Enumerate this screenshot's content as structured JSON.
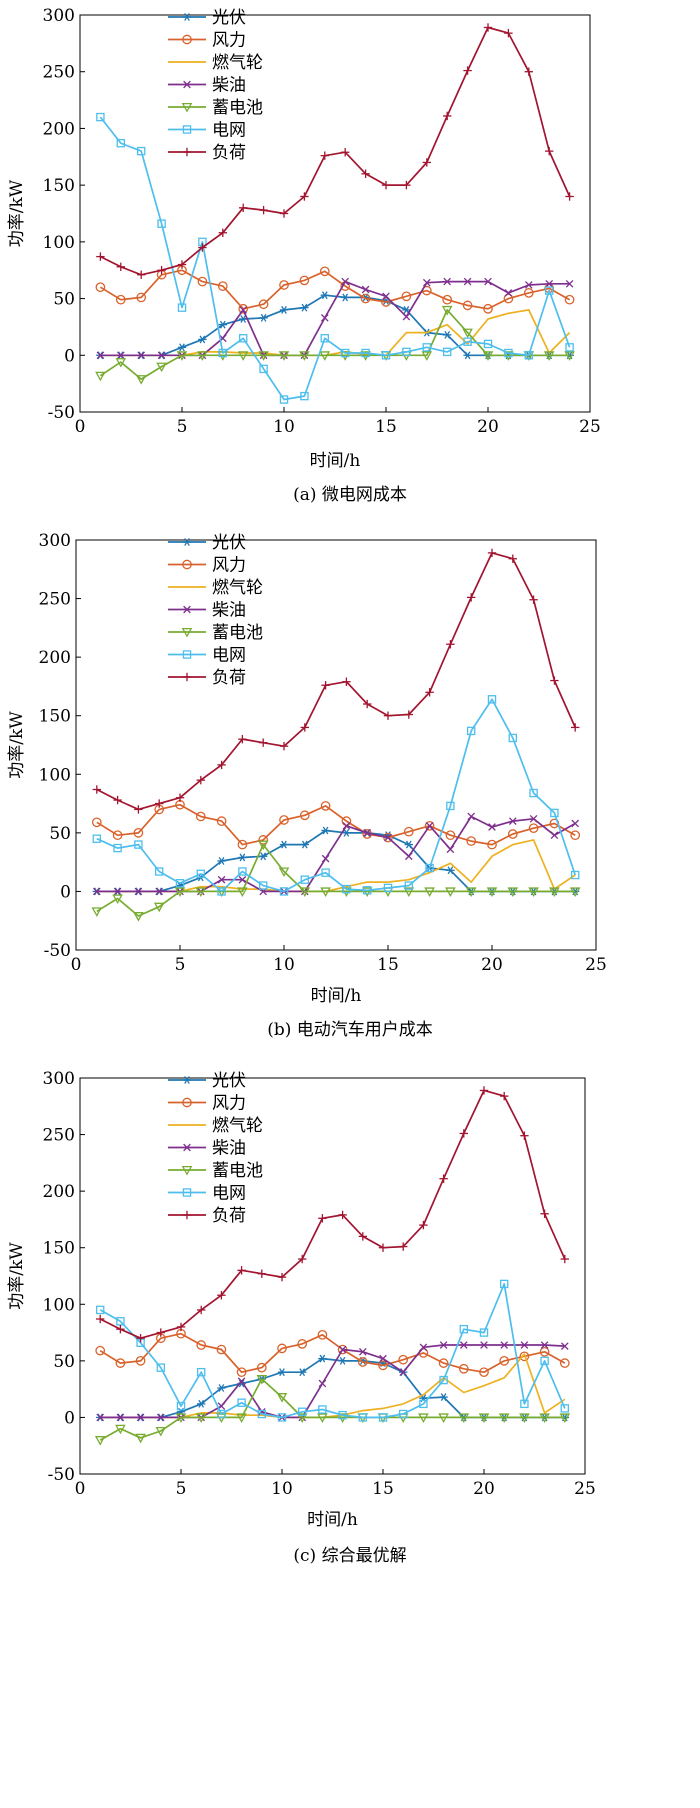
{
  "charts": [
    {
      "caption": "(a) 微电网成本",
      "chart_data": {
        "type": "line",
        "xlabel": "时间/h",
        "ylabel": "功率/kW",
        "xlim": [
          0,
          25
        ],
        "ylim": [
          -50,
          300
        ],
        "xticks": [
          0,
          5,
          10,
          15,
          20,
          25
        ],
        "yticks": [
          -50,
          0,
          50,
          100,
          150,
          200,
          250,
          300
        ],
        "grid": false,
        "legend_position": "top-left",
        "x": [
          1,
          2,
          3,
          4,
          5,
          6,
          7,
          8,
          9,
          10,
          11,
          12,
          13,
          14,
          15,
          16,
          17,
          18,
          19,
          20,
          21,
          22,
          23,
          24
        ],
        "series": [
          {
            "name": "光伏",
            "marker": "asterisk",
            "color": "#1f77b4",
            "values": [
              0,
              0,
              0,
              0,
              7,
              14,
              27,
              32,
              33,
              40,
              42,
              53,
              51,
              51,
              48,
              40,
              20,
              18,
              0,
              0,
              0,
              0,
              0,
              0
            ]
          },
          {
            "name": "风力",
            "marker": "circle",
            "color": "#d9622b",
            "values": [
              60,
              49,
              51,
              71,
              75,
              65,
              61,
              41,
              45,
              62,
              66,
              74,
              61,
              50,
              47,
              52,
              57,
              49,
              44,
              41,
              50,
              55,
              59,
              49
            ]
          },
          {
            "name": "燃气轮",
            "marker": "none",
            "color": "#edb120",
            "values": [
              0,
              0,
              0,
              0,
              0,
              3,
              3,
              2,
              2,
              0,
              0,
              0,
              3,
              1,
              0,
              20,
              20,
              27,
              10,
              32,
              37,
              40,
              2,
              20
            ]
          },
          {
            "name": "柴油",
            "marker": "x",
            "color": "#7e2f8e",
            "values": [
              0,
              0,
              0,
              0,
              0,
              0,
              15,
              40,
              0,
              0,
              0,
              33,
              65,
              58,
              52,
              34,
              64,
              65,
              65,
              65,
              55,
              62,
              63,
              63
            ]
          },
          {
            "name": "蓄电池",
            "marker": "triangle-down",
            "color": "#77ac30",
            "values": [
              -18,
              -6,
              -21,
              -10,
              0,
              0,
              0,
              0,
              0,
              0,
              0,
              0,
              0,
              0,
              0,
              0,
              0,
              40,
              20,
              0,
              0,
              0,
              0,
              0
            ]
          },
          {
            "name": "电网",
            "marker": "square",
            "color": "#4dbeee",
            "values": [
              210,
              187,
              180,
              116,
              42,
              100,
              2,
              15,
              -12,
              -39,
              -36,
              15,
              2,
              2,
              0,
              3,
              7,
              3,
              12,
              10,
              2,
              0,
              57,
              7
            ]
          },
          {
            "name": "负荷",
            "marker": "plus",
            "color": "#a2142f",
            "values": [
              87,
              78,
              71,
              75,
              80,
              95,
              108,
              130,
              128,
              125,
              140,
              176,
              179,
              160,
              150,
              150,
              170,
              211,
              251,
              289,
              284,
              250,
              180,
              140
            ]
          }
        ]
      }
    },
    {
      "caption": "(b) 电动汽车用户成本",
      "chart_data": {
        "type": "line",
        "xlabel": "时间/h",
        "ylabel": "功率/kW",
        "xlim": [
          0,
          25
        ],
        "ylim": [
          -50,
          300
        ],
        "xticks": [
          0,
          5,
          10,
          15,
          20,
          25
        ],
        "yticks": [
          -50,
          0,
          50,
          100,
          150,
          200,
          250,
          300
        ],
        "grid": false,
        "legend_position": "top-left",
        "x": [
          1,
          2,
          3,
          4,
          5,
          6,
          7,
          8,
          9,
          10,
          11,
          12,
          13,
          14,
          15,
          16,
          17,
          18,
          19,
          20,
          21,
          22,
          23,
          24
        ],
        "series": [
          {
            "name": "光伏",
            "marker": "asterisk",
            "color": "#1f77b4",
            "values": [
              0,
              0,
              0,
              0,
              5,
              12,
              26,
              29,
              30,
              40,
              40,
              52,
              50,
              50,
              48,
              40,
              20,
              18,
              0,
              0,
              0,
              0,
              0,
              0
            ]
          },
          {
            "name": "风力",
            "marker": "circle",
            "color": "#d9622b",
            "values": [
              59,
              48,
              50,
              70,
              74,
              64,
              60,
              40,
              44,
              61,
              65,
              73,
              60,
              49,
              46,
              51,
              56,
              48,
              43,
              40,
              49,
              54,
              58,
              48
            ]
          },
          {
            "name": "燃气轮",
            "marker": "none",
            "color": "#edb120",
            "values": [
              0,
              0,
              0,
              0,
              0,
              4,
              4,
              2,
              2,
              0,
              0,
              0,
              4,
              8,
              8,
              10,
              16,
              24,
              8,
              30,
              40,
              44,
              2,
              14
            ]
          },
          {
            "name": "柴油",
            "marker": "x",
            "color": "#7e2f8e",
            "values": [
              0,
              0,
              0,
              0,
              0,
              0,
              10,
              10,
              0,
              0,
              0,
              28,
              56,
              50,
              46,
              30,
              56,
              36,
              64,
              55,
              60,
              62,
              48,
              58
            ]
          },
          {
            "name": "蓄电池",
            "marker": "triangle-down",
            "color": "#77ac30",
            "values": [
              -17,
              -6,
              -21,
              -13,
              0,
              0,
              0,
              0,
              40,
              17,
              0,
              0,
              0,
              0,
              0,
              0,
              0,
              0,
              0,
              0,
              0,
              0,
              0,
              0
            ]
          },
          {
            "name": "电网",
            "marker": "square",
            "color": "#4dbeee",
            "values": [
              45,
              37,
              40,
              17,
              7,
              15,
              0,
              17,
              5,
              0,
              10,
              16,
              2,
              1,
              3,
              5,
              20,
              73,
              137,
              164,
              131,
              84,
              67,
              14
            ]
          },
          {
            "name": "负荷",
            "marker": "plus",
            "color": "#a2142f",
            "values": [
              87,
              78,
              70,
              75,
              80,
              95,
              108,
              130,
              127,
              124,
              140,
              176,
              179,
              160,
              150,
              151,
              170,
              211,
              251,
              289,
              284,
              249,
              180,
              140
            ]
          }
        ]
      }
    },
    {
      "caption": "(c) 综合最优解",
      "chart_data": {
        "type": "line",
        "xlabel": "时间/h",
        "ylabel": "功率/kW",
        "xlim": [
          0,
          25
        ],
        "ylim": [
          -50,
          300
        ],
        "xticks": [
          0,
          5,
          10,
          15,
          20,
          25
        ],
        "yticks": [
          -50,
          0,
          50,
          100,
          150,
          200,
          250,
          300
        ],
        "grid": false,
        "legend_position": "top-left",
        "x": [
          1,
          2,
          3,
          4,
          5,
          6,
          7,
          8,
          9,
          10,
          11,
          12,
          13,
          14,
          15,
          16,
          17,
          18,
          19,
          20,
          21,
          22,
          23,
          24
        ],
        "series": [
          {
            "name": "光伏",
            "marker": "asterisk",
            "color": "#1f77b4",
            "values": [
              0,
              0,
              0,
              0,
              5,
              12,
              26,
              30,
              34,
              40,
              40,
              52,
              50,
              50,
              48,
              40,
              17,
              18,
              0,
              0,
              0,
              0,
              0,
              0
            ]
          },
          {
            "name": "风力",
            "marker": "circle",
            "color": "#d9622b",
            "values": [
              59,
              48,
              50,
              70,
              74,
              64,
              60,
              40,
              44,
              61,
              65,
              73,
              60,
              49,
              46,
              51,
              57,
              48,
              43,
              40,
              50,
              54,
              58,
              48
            ]
          },
          {
            "name": "燃气轮",
            "marker": "none",
            "color": "#edb120",
            "values": [
              0,
              0,
              0,
              0,
              0,
              4,
              4,
              2,
              2,
              0,
              0,
              0,
              2,
              6,
              8,
              12,
              20,
              35,
              22,
              28,
              35,
              56,
              4,
              16
            ]
          },
          {
            "name": "柴油",
            "marker": "x",
            "color": "#7e2f8e",
            "values": [
              0,
              0,
              0,
              0,
              0,
              0,
              10,
              32,
              5,
              0,
              0,
              30,
              60,
              58,
              52,
              40,
              62,
              64,
              64,
              64,
              64,
              64,
              64,
              63
            ]
          },
          {
            "name": "蓄电池",
            "marker": "triangle-down",
            "color": "#77ac30",
            "values": [
              -20,
              -10,
              -18,
              -12,
              0,
              0,
              0,
              0,
              34,
              18,
              0,
              0,
              0,
              0,
              0,
              0,
              0,
              0,
              0,
              0,
              0,
              0,
              0,
              0
            ]
          },
          {
            "name": "电网",
            "marker": "square",
            "color": "#4dbeee",
            "values": [
              95,
              85,
              66,
              44,
              10,
              40,
              3,
              13,
              3,
              0,
              5,
              7,
              2,
              0,
              0,
              3,
              12,
              33,
              78,
              75,
              118,
              12,
              50,
              8
            ]
          },
          {
            "name": "负荷",
            "marker": "plus",
            "color": "#a2142f",
            "values": [
              87,
              78,
              70,
              75,
              80,
              95,
              108,
              130,
              127,
              124,
              140,
              176,
              179,
              160,
              150,
              151,
              170,
              211,
              251,
              289,
              284,
              249,
              180,
              140
            ]
          }
        ]
      }
    }
  ]
}
